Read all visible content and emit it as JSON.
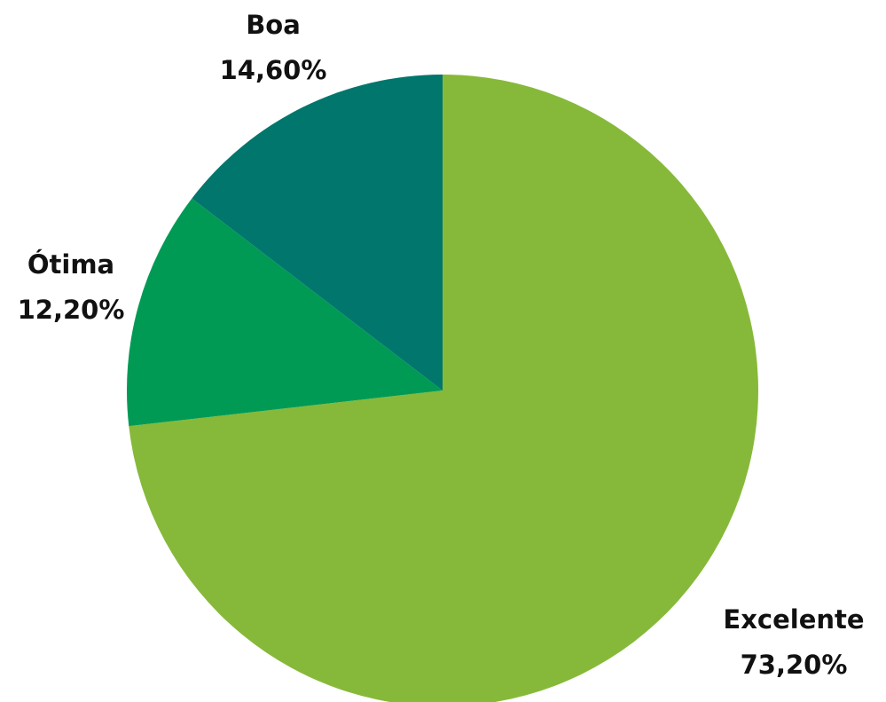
{
  "chart_data": {
    "type": "pie",
    "categories": [
      "Excelente",
      "Ótima",
      "Boa"
    ],
    "values": [
      73.2,
      12.2,
      14.6
    ],
    "value_labels": [
      "73,20%",
      "12,20%",
      "14,60%"
    ],
    "colors": [
      "#86b939",
      "#009a55",
      "#00766c"
    ]
  }
}
